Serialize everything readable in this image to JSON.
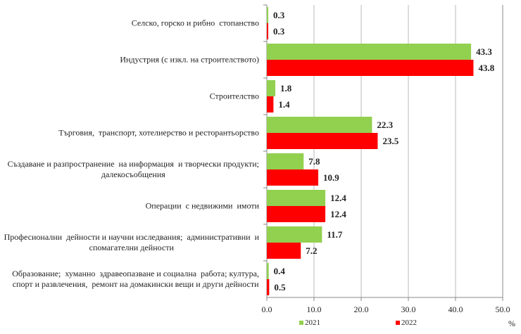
{
  "chart_data": {
    "type": "bar",
    "orientation": "horizontal",
    "categories": [
      "Селско, горско и рибно  стопанство",
      "Индустрия (с изкл. на строителството)",
      "Строителство",
      "Търговия,  транспорт, хотелиерство и ресторантьорство",
      "Създаване и разпространение  на информация  и творчески продукти;\nдалекосъобщения",
      "Операции  с недвижими  имоти",
      "Професионални  дейности и научни изследвания;  административни  и\nспомагателни дейности",
      "Образование;  хуманно  здравеопазване и социална  работа; култура,\nспорт и развлечения,  ремонт на домакински вещи и други дейности"
    ],
    "series": [
      {
        "name": "2021",
        "color": "#92D050",
        "values": [
          0.3,
          43.3,
          1.8,
          22.3,
          7.8,
          12.4,
          11.7,
          0.4
        ],
        "labels": [
          "0.3",
          "43.3",
          "1.8",
          "22.3",
          "7.8",
          "12.4",
          "11.7",
          "0.4"
        ]
      },
      {
        "name": "2022",
        "color": "#FF0000",
        "values": [
          0.3,
          43.8,
          1.4,
          23.5,
          10.9,
          12.4,
          7.2,
          0.5
        ],
        "labels": [
          "0.3",
          "43.8",
          "1.4",
          "23.5",
          "10.9",
          "12.4",
          "7.2",
          "0.5"
        ]
      }
    ],
    "xlim": [
      0,
      50
    ],
    "xticks": [
      "0.0",
      "10.0",
      "20.0",
      "30.0",
      "40.0",
      "50.0"
    ],
    "xlabel": "%",
    "grid": "vertical",
    "legend": "bottom"
  }
}
